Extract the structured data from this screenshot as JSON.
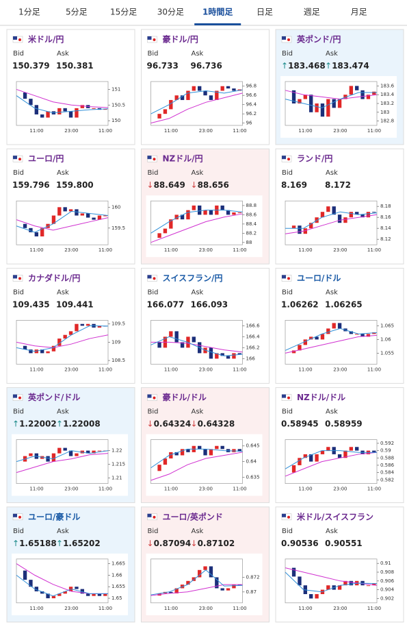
{
  "tabs": {
    "items": [
      "1分足",
      "5分足",
      "15分足",
      "30分足",
      "1時間足",
      "日足",
      "週足",
      "月足"
    ],
    "active": 4
  },
  "labels": {
    "bid": "Bid",
    "ask": "Ask"
  },
  "chart_xlabels": [
    "11:00",
    "23:00",
    "11:00"
  ],
  "cards": [
    {
      "title": "米ドル/円",
      "title_color": "#6b2a8f",
      "state": "flat",
      "bid": "150.379",
      "ask": "150.381",
      "chart": {
        "ylim": [
          149.85,
          151.25
        ],
        "yticks": [
          151,
          150.5,
          150
        ],
        "closes": [
          150.9,
          150.7,
          150.5,
          150.2,
          150.1,
          150.3,
          150.2,
          150.4,
          150.3,
          150.1,
          150.4,
          150.5,
          150.4,
          150.4,
          150.35,
          150.38
        ],
        "ma_short": [
          150.8,
          150.4,
          150.25,
          150.3,
          150.35,
          150.38
        ],
        "ma_long": [
          151.0,
          150.8,
          150.6,
          150.5,
          150.45,
          150.42
        ]
      }
    },
    {
      "title": "豪ドル/円",
      "title_color": "#6b2a8f",
      "state": "flat",
      "bid": "96.733",
      "ask": "96.736",
      "chart": {
        "ylim": [
          95.95,
          96.9
        ],
        "yticks": [
          96.8,
          96.6,
          96.4,
          96.2,
          96
        ],
        "closes": [
          96.1,
          96.2,
          96.3,
          96.5,
          96.6,
          96.5,
          96.7,
          96.8,
          96.7,
          96.6,
          96.5,
          96.7,
          96.8,
          96.75,
          96.7,
          96.73
        ],
        "ma_short": [
          96.2,
          96.4,
          96.65,
          96.7,
          96.65,
          96.72
        ],
        "ma_long": [
          96.0,
          96.1,
          96.3,
          96.45,
          96.55,
          96.65
        ]
      }
    },
    {
      "title": "英ポンド/円",
      "title_color": "#6b2a8f",
      "state": "up",
      "bid_arrow": "↑",
      "ask_arrow": "↑",
      "bid": "183.468",
      "ask": "183.474",
      "chart": {
        "ylim": [
          182.7,
          183.7
        ],
        "yticks": [
          183.6,
          183.4,
          183.2,
          183,
          182.8
        ],
        "closes": [
          183.5,
          183.2,
          183.3,
          183.4,
          183.0,
          183.2,
          182.9,
          183.3,
          183.1,
          183.3,
          183.4,
          183.6,
          183.5,
          183.3,
          183.4,
          183.47
        ],
        "ma_short": [
          183.3,
          183.2,
          183.1,
          183.3,
          183.45,
          183.45
        ],
        "ma_long": [
          183.5,
          183.4,
          183.35,
          183.3,
          183.35,
          183.4
        ]
      }
    },
    {
      "title": "ユーロ/円",
      "title_color": "#6b2a8f",
      "state": "flat",
      "bid": "159.796",
      "ask": "159.800",
      "chart": {
        "ylim": [
          159.1,
          160.15
        ],
        "yticks": [
          160,
          159.5
        ],
        "closes": [
          159.6,
          159.5,
          159.4,
          159.3,
          159.5,
          159.6,
          159.8,
          160.0,
          159.9,
          159.95,
          159.8,
          159.85,
          159.75,
          159.7,
          159.8,
          159.8
        ],
        "ma_short": [
          159.55,
          159.4,
          159.6,
          159.9,
          159.85,
          159.8
        ],
        "ma_long": [
          159.7,
          159.55,
          159.45,
          159.55,
          159.65,
          159.75
        ]
      }
    },
    {
      "title": "NZドル/円",
      "title_color": "#6b2a8f",
      "state": "down",
      "bid_arrow": "↓",
      "ask_arrow": "↓",
      "bid": "88.649",
      "ask": "88.656",
      "chart": {
        "ylim": [
          87.95,
          88.9
        ],
        "yticks": [
          88.8,
          88.6,
          88.4,
          88.2,
          88
        ],
        "closes": [
          88.1,
          88.2,
          88.3,
          88.5,
          88.6,
          88.5,
          88.7,
          88.8,
          88.6,
          88.7,
          88.6,
          88.8,
          88.7,
          88.6,
          88.65,
          88.65
        ],
        "ma_short": [
          88.2,
          88.45,
          88.65,
          88.7,
          88.7,
          88.66
        ],
        "ma_long": [
          88.0,
          88.15,
          88.3,
          88.45,
          88.55,
          88.62
        ]
      }
    },
    {
      "title": "ランド/円",
      "title_color": "#6b2a8f",
      "state": "flat",
      "bid": "8.169",
      "ask": "8.172",
      "chart": {
        "ylim": [
          8.11,
          8.19
        ],
        "yticks": [
          8.18,
          8.16,
          8.14,
          8.12
        ],
        "closes": [
          8.14,
          8.145,
          8.13,
          8.14,
          8.15,
          8.16,
          8.17,
          8.18,
          8.165,
          8.15,
          8.16,
          8.17,
          8.165,
          8.16,
          8.17,
          8.169
        ],
        "ma_short": [
          8.14,
          8.14,
          8.16,
          8.17,
          8.165,
          8.168
        ],
        "ma_long": [
          8.13,
          8.135,
          8.145,
          8.155,
          8.16,
          8.165
        ]
      }
    },
    {
      "title": "カナダドル/円",
      "title_color": "#6b2a8f",
      "state": "flat",
      "bid": "109.435",
      "ask": "109.441",
      "chart": {
        "ylim": [
          108.4,
          109.6
        ],
        "yticks": [
          109.5,
          109,
          108.5
        ],
        "closes": [
          108.9,
          108.8,
          108.7,
          108.8,
          108.7,
          108.75,
          108.9,
          109.1,
          109.2,
          109.3,
          109.5,
          109.45,
          109.5,
          109.4,
          109.45,
          109.44
        ],
        "ma_short": [
          108.85,
          108.75,
          108.85,
          109.2,
          109.45,
          109.44
        ],
        "ma_long": [
          109.0,
          108.9,
          108.85,
          108.95,
          109.1,
          109.2
        ]
      }
    },
    {
      "title": "スイスフラン/円",
      "title_color": "#1a5aa6",
      "state": "flat",
      "bid": "166.077",
      "ask": "166.093",
      "chart": {
        "ylim": [
          165.9,
          166.7
        ],
        "yticks": [
          166.6,
          166.4,
          166.2,
          166
        ],
        "closes": [
          166.3,
          166.2,
          166.4,
          166.5,
          166.3,
          166.2,
          166.4,
          166.3,
          166.1,
          166.2,
          166.0,
          166.1,
          166.05,
          166.0,
          166.1,
          166.08
        ],
        "ma_short": [
          166.25,
          166.4,
          166.3,
          166.15,
          166.05,
          166.08
        ],
        "ma_long": [
          166.3,
          166.3,
          166.28,
          166.22,
          166.16,
          166.12
        ]
      }
    },
    {
      "title": "ユーロ/ドル",
      "title_color": "#1a5aa6",
      "state": "flat",
      "bid": "1.06262",
      "ask": "1.06265",
      "chart": {
        "ylim": [
          1.051,
          1.067
        ],
        "yticks": [
          1.065,
          1.06,
          1.055
        ],
        "closes": [
          1.055,
          1.056,
          1.058,
          1.06,
          1.061,
          1.06,
          1.062,
          1.064,
          1.066,
          1.064,
          1.063,
          1.062,
          1.062,
          1.061,
          1.062,
          1.0626
        ],
        "ma_short": [
          1.056,
          1.059,
          1.062,
          1.064,
          1.062,
          1.0625
        ],
        "ma_long": [
          1.055,
          1.0565,
          1.058,
          1.0595,
          1.061,
          1.0615
        ]
      }
    },
    {
      "title": "英ポンド/ドル",
      "title_color": "#6b2a8f",
      "state": "up",
      "bid_arrow": "↑",
      "ask_arrow": "↑",
      "bid": "1.22002",
      "ask": "1.22008",
      "chart": {
        "ylim": [
          1.208,
          1.224
        ],
        "yticks": [
          1.22,
          1.215,
          1.21
        ],
        "closes": [
          1.216,
          1.218,
          1.219,
          1.217,
          1.218,
          1.216,
          1.219,
          1.221,
          1.22,
          1.218,
          1.219,
          1.22,
          1.219,
          1.22,
          1.22,
          1.22
        ],
        "ma_short": [
          1.216,
          1.218,
          1.217,
          1.22,
          1.219,
          1.22
        ],
        "ma_long": [
          1.212,
          1.214,
          1.216,
          1.217,
          1.2185,
          1.219
        ]
      }
    },
    {
      "title": "豪ドル/ドル",
      "title_color": "#6b2a8f",
      "state": "down",
      "bid_arrow": "↓",
      "ask_arrow": "↓",
      "bid": "0.64324",
      "ask": "0.64328",
      "chart": {
        "ylim": [
          0.633,
          0.647
        ],
        "yticks": [
          0.645,
          0.64,
          0.635
        ],
        "closes": [
          0.637,
          0.639,
          0.641,
          0.643,
          0.642,
          0.644,
          0.643,
          0.645,
          0.644,
          0.642,
          0.644,
          0.645,
          0.644,
          0.643,
          0.644,
          0.6432
        ],
        "ma_short": [
          0.638,
          0.642,
          0.644,
          0.644,
          0.6435,
          0.6433
        ],
        "ma_long": [
          0.634,
          0.636,
          0.639,
          0.641,
          0.642,
          0.643
        ]
      }
    },
    {
      "title": "NZドル/ドル",
      "title_color": "#6b2a8f",
      "state": "flat",
      "bid": "0.58945",
      "ask": "0.58959",
      "chart": {
        "ylim": [
          0.581,
          0.593
        ],
        "yticks": [
          0.592,
          0.59,
          0.588,
          0.586,
          0.584,
          0.582
        ],
        "closes": [
          0.584,
          0.586,
          0.588,
          0.589,
          0.587,
          0.589,
          0.59,
          0.591,
          0.589,
          0.588,
          0.59,
          0.591,
          0.59,
          0.589,
          0.59,
          0.5895
        ],
        "ma_short": [
          0.585,
          0.588,
          0.59,
          0.59,
          0.5895,
          0.5895
        ],
        "ma_long": [
          0.583,
          0.585,
          0.587,
          0.588,
          0.589,
          0.5895
        ]
      }
    },
    {
      "title": "ユーロ/豪ドル",
      "title_color": "#1a5aa6",
      "state": "up",
      "bid_arrow": "↑",
      "ask_arrow": "↑",
      "bid": "1.65188",
      "ask": "1.65202",
      "chart": {
        "ylim": [
          1.648,
          1.667
        ],
        "yticks": [
          1.665,
          1.66,
          1.655,
          1.65
        ],
        "closes": [
          1.662,
          1.658,
          1.655,
          1.653,
          1.652,
          1.65,
          1.651,
          1.652,
          1.653,
          1.655,
          1.654,
          1.652,
          1.651,
          1.652,
          1.651,
          1.6519
        ],
        "ma_short": [
          1.66,
          1.654,
          1.651,
          1.654,
          1.652,
          1.652
        ],
        "ma_long": [
          1.665,
          1.66,
          1.656,
          1.653,
          1.652,
          1.652
        ]
      }
    },
    {
      "title": "ユーロ/英ポンド",
      "title_color": "#6b2a8f",
      "state": "down",
      "bid_arrow": "↓",
      "ask_arrow": "↓",
      "bid": "0.87094",
      "ask": "0.87102",
      "chart": {
        "ylim": [
          0.8685,
          0.8745
        ],
        "yticks": [
          0.872,
          0.87
        ],
        "closes": [
          0.8695,
          0.8698,
          0.87,
          0.8698,
          0.8705,
          0.871,
          0.8715,
          0.872,
          0.873,
          0.8735,
          0.872,
          0.8705,
          0.8702,
          0.8705,
          0.871,
          0.8709
        ],
        "ma_short": [
          0.8696,
          0.87,
          0.871,
          0.873,
          0.8708,
          0.8709
        ],
        "ma_long": [
          0.8695,
          0.8698,
          0.87,
          0.8705,
          0.871,
          0.871
        ]
      }
    },
    {
      "title": "米ドル/スイスフラン",
      "title_color": "#6b2a8f",
      "state": "flat",
      "bid": "0.90536",
      "ask": "0.90551",
      "chart": {
        "ylim": [
          0.901,
          0.911
        ],
        "yticks": [
          0.91,
          0.908,
          0.906,
          0.904,
          0.902
        ],
        "closes": [
          0.909,
          0.907,
          0.905,
          0.903,
          0.902,
          0.903,
          0.904,
          0.905,
          0.904,
          0.905,
          0.906,
          0.905,
          0.906,
          0.905,
          0.905,
          0.9054
        ],
        "ma_short": [
          0.908,
          0.904,
          0.9035,
          0.905,
          0.9055,
          0.9054
        ],
        "ma_long": [
          0.909,
          0.908,
          0.907,
          0.906,
          0.9055,
          0.905
        ]
      }
    }
  ]
}
